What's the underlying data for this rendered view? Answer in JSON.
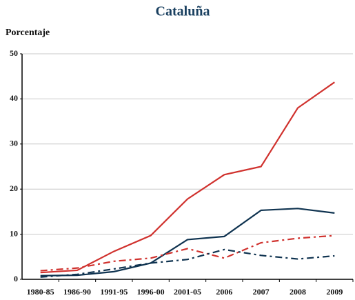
{
  "chart_data": {
    "type": "line",
    "title": "Cataluña",
    "y_label": "Porcentaje",
    "categories": [
      "1980-85",
      "1986-90",
      "1991-95",
      "1996-00",
      "2001-05",
      "2006",
      "2007",
      "2008",
      "2009"
    ],
    "series": [
      {
        "color": "#d0312d",
        "dash": "solid",
        "values": [
          1.5,
          2.0,
          6.2,
          9.7,
          17.8,
          23.2,
          25.0,
          38.0,
          43.7
        ]
      },
      {
        "color": "#0f3350",
        "dash": "solid",
        "values": [
          0.8,
          0.9,
          1.7,
          3.6,
          8.8,
          9.5,
          15.3,
          15.7,
          14.7
        ]
      },
      {
        "color": "#d0312d",
        "dash": "dash-dot",
        "values": [
          1.9,
          2.5,
          4.0,
          4.7,
          6.8,
          4.7,
          8.1,
          9.1,
          9.7
        ]
      },
      {
        "color": "#0f3350",
        "dash": "dash-dot",
        "values": [
          0.5,
          1.1,
          2.3,
          3.6,
          4.4,
          6.6,
          5.3,
          4.5,
          5.2
        ]
      }
    ],
    "ylim": [
      0,
      50
    ],
    "yticks": [
      0,
      10,
      20,
      30,
      40,
      50
    ],
    "grid": true
  }
}
